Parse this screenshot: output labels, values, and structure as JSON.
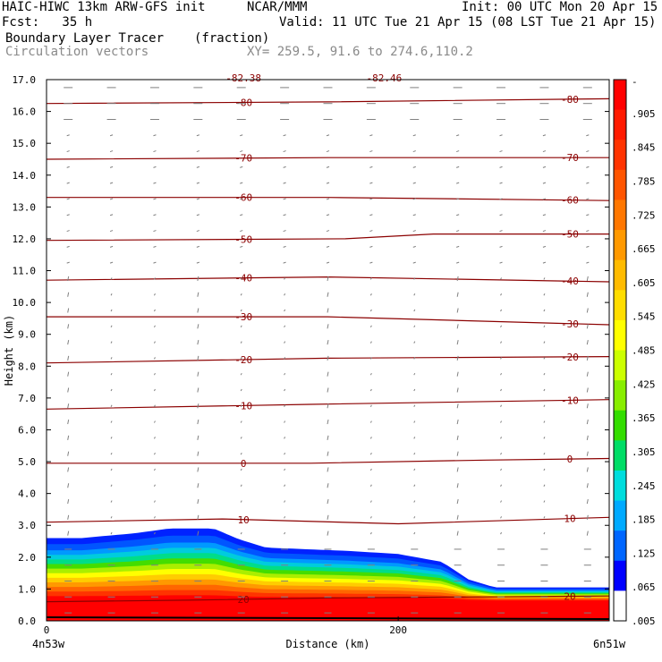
{
  "header": {
    "model": "HAIC-HIWC 13km ARW-GFS init",
    "org": "NCAR/MMM",
    "init": "Init: 00 UTC Mon 20 Apr 15",
    "fcst": "Fcst:   35 h",
    "valid": "Valid: 11 UTC Tue 21 Apr 15 (08 LST Tue 21 Apr 15)",
    "field": "Boundary Layer Tracer",
    "units": "(fraction)",
    "vectors": "Circulation vectors",
    "xy": "XY= 259.5, 91.6 to 274.6,110.2"
  },
  "chart_data": {
    "type": "heatmap",
    "title": "Boundary Layer Tracer",
    "ylabel": "Height (km)",
    "xlabel": "Distance (km)",
    "ylim": [
      0,
      17
    ],
    "xlim": [
      0,
      320
    ],
    "yticks": [
      "0.0",
      "1.0",
      "2.0",
      "3.0",
      "4.0",
      "5.0",
      "6.0",
      "7.0",
      "8.0",
      "9.0",
      "10.0",
      "11.0",
      "12.0",
      "13.0",
      "14.0",
      "15.0",
      "16.0",
      "17.0"
    ],
    "xticks": [
      {
        "value": 0,
        "label": "0"
      },
      {
        "value": 200,
        "label": "200"
      }
    ],
    "x_end_labels": {
      "left": "4n53w",
      "right": "6n51w"
    },
    "colorbar": {
      "labels": [
        "-",
        ".905",
        ".845",
        ".785",
        ".725",
        ".665",
        ".605",
        ".545",
        ".485",
        ".425",
        ".365",
        ".305",
        ".245",
        ".185",
        ".125",
        ".065",
        ".005"
      ],
      "colors": [
        "#ff0000",
        "#ff1a00",
        "#ff3300",
        "#ff5500",
        "#ff7700",
        "#ff9900",
        "#ffbb00",
        "#ffdd00",
        "#ffff00",
        "#ccff00",
        "#88ee00",
        "#33dd00",
        "#00dd66",
        "#00dddd",
        "#00aaff",
        "#0066ff",
        "#0000ff",
        "#ffffff"
      ]
    },
    "tracer_top_km": [
      [
        0,
        2.6
      ],
      [
        20,
        2.6
      ],
      [
        50,
        2.75
      ],
      [
        70,
        2.9
      ],
      [
        95,
        2.9
      ],
      [
        110,
        2.55
      ],
      [
        125,
        2.3
      ],
      [
        170,
        2.2
      ],
      [
        200,
        2.1
      ],
      [
        225,
        1.85
      ],
      [
        240,
        1.3
      ],
      [
        255,
        1.05
      ],
      [
        320,
        1.05
      ]
    ],
    "temperature_contours": [
      {
        "label": "20",
        "value": 20,
        "points": [
          [
            0,
            0.6
          ],
          [
            80,
            0.65
          ],
          [
            160,
            0.72
          ],
          [
            240,
            0.75
          ],
          [
            320,
            0.78
          ]
        ]
      },
      {
        "label": "10",
        "value": 10,
        "points": [
          [
            0,
            3.1
          ],
          [
            100,
            3.2
          ],
          [
            200,
            3.05
          ],
          [
            320,
            3.25
          ]
        ]
      },
      {
        "label": "0",
        "value": 0,
        "points": [
          [
            0,
            4.95
          ],
          [
            150,
            4.95
          ],
          [
            250,
            5.05
          ],
          [
            320,
            5.1
          ]
        ]
      },
      {
        "label": "-10",
        "value": -10,
        "points": [
          [
            0,
            6.65
          ],
          [
            150,
            6.8
          ],
          [
            320,
            6.95
          ]
        ]
      },
      {
        "label": "-20",
        "value": -20,
        "points": [
          [
            0,
            8.1
          ],
          [
            160,
            8.25
          ],
          [
            320,
            8.3
          ]
        ]
      },
      {
        "label": "-30",
        "value": -30,
        "points": [
          [
            0,
            9.55
          ],
          [
            160,
            9.55
          ],
          [
            320,
            9.3
          ]
        ]
      },
      {
        "label": "-40",
        "value": -40,
        "points": [
          [
            0,
            10.7
          ],
          [
            160,
            10.8
          ],
          [
            320,
            10.65
          ]
        ]
      },
      {
        "label": "-50",
        "value": -50,
        "points": [
          [
            0,
            11.95
          ],
          [
            170,
            12.0
          ],
          [
            220,
            12.15
          ],
          [
            320,
            12.15
          ]
        ]
      },
      {
        "label": "-60",
        "value": -60,
        "points": [
          [
            0,
            13.3
          ],
          [
            160,
            13.3
          ],
          [
            320,
            13.2
          ]
        ]
      },
      {
        "label": "-70",
        "value": -70,
        "points": [
          [
            0,
            14.5
          ],
          [
            160,
            14.55
          ],
          [
            320,
            14.55
          ]
        ]
      },
      {
        "label": "-80",
        "value": -80,
        "points": [
          [
            0,
            16.25
          ],
          [
            160,
            16.3
          ],
          [
            320,
            16.4
          ]
        ]
      }
    ],
    "contour_labels_partial": [
      "-82.38",
      "-82.46"
    ]
  },
  "colors": {
    "contour": "#8b0000",
    "vector": "#808080",
    "axis": "#000000"
  }
}
